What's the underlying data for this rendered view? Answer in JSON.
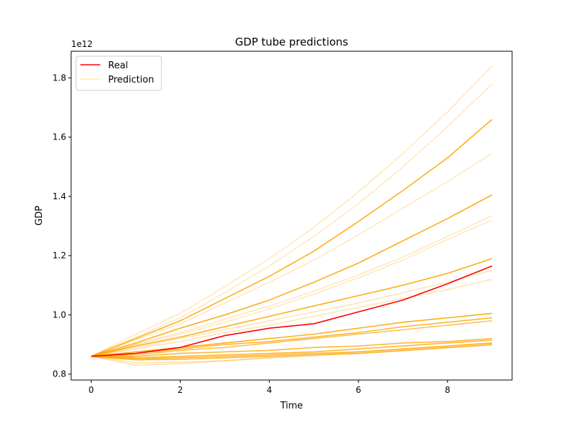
{
  "chart_data": {
    "type": "line",
    "title": "GDP tube predictions",
    "xlabel": "Time",
    "ylabel": "GDP",
    "y_offset_label": "1e12",
    "xlim": [
      -0.45,
      9.45
    ],
    "ylim": [
      0.78,
      1.89
    ],
    "x_ticks": [
      0,
      2,
      4,
      6,
      8
    ],
    "y_ticks": [
      0.8,
      1.0,
      1.2,
      1.4,
      1.6,
      1.8
    ],
    "y_tick_labels": [
      "0.8",
      "1.0",
      "1.2",
      "1.4",
      "1.6",
      "1.8"
    ],
    "grid": false,
    "legend": {
      "position": "top-left",
      "entries": [
        {
          "label": "Real",
          "color": "#ff0000"
        },
        {
          "label": "Prediction",
          "color": "#ffa500"
        }
      ]
    },
    "x": [
      0,
      1,
      2,
      3,
      4,
      5,
      6,
      7,
      8,
      9
    ],
    "real": {
      "name": "Real",
      "color": "#ff0000",
      "values": [
        0.86,
        0.87,
        0.89,
        0.93,
        0.955,
        0.97,
        1.01,
        1.05,
        1.105,
        1.165
      ]
    },
    "predictions": {
      "name": "Prediction",
      "color": "#ffa500",
      "series": [
        {
          "values": [
            0.86,
            0.935,
            1.005,
            1.095,
            1.19,
            1.295,
            1.415,
            1.545,
            1.685,
            1.84
          ],
          "opacity": 0.25
        },
        {
          "values": [
            0.86,
            0.925,
            0.99,
            1.075,
            1.165,
            1.265,
            1.375,
            1.5,
            1.635,
            1.78
          ],
          "opacity": 0.25
        },
        {
          "values": [
            0.86,
            0.92,
            0.98,
            1.055,
            1.13,
            1.215,
            1.315,
            1.42,
            1.53,
            1.66
          ],
          "opacity": 0.9
        },
        {
          "values": [
            0.86,
            0.915,
            0.97,
            1.04,
            1.11,
            1.185,
            1.27,
            1.36,
            1.45,
            1.545
          ],
          "opacity": 0.25
        },
        {
          "values": [
            0.86,
            0.905,
            0.955,
            1.0,
            1.05,
            1.11,
            1.175,
            1.25,
            1.325,
            1.405
          ],
          "opacity": 0.9
        },
        {
          "values": [
            0.86,
            0.9,
            0.94,
            0.985,
            1.03,
            1.08,
            1.135,
            1.195,
            1.265,
            1.335
          ],
          "opacity": 0.25
        },
        {
          "values": [
            0.86,
            0.9,
            0.935,
            0.975,
            1.02,
            1.07,
            1.125,
            1.185,
            1.255,
            1.32
          ],
          "opacity": 0.25
        },
        {
          "values": [
            0.86,
            0.895,
            0.925,
            0.96,
            0.995,
            1.03,
            1.065,
            1.1,
            1.14,
            1.19
          ],
          "opacity": 0.9
        },
        {
          "values": [
            0.86,
            0.89,
            0.92,
            0.95,
            0.98,
            1.01,
            1.04,
            1.075,
            1.11,
            1.15
          ],
          "opacity": 0.3
        },
        {
          "values": [
            0.86,
            0.885,
            0.91,
            0.94,
            0.965,
            0.995,
            1.025,
            1.055,
            1.085,
            1.12
          ],
          "opacity": 0.3
        },
        {
          "values": [
            0.86,
            0.875,
            0.89,
            0.905,
            0.92,
            0.935,
            0.955,
            0.975,
            0.99,
            1.005
          ],
          "opacity": 0.9
        },
        {
          "values": [
            0.86,
            0.87,
            0.885,
            0.9,
            0.91,
            0.925,
            0.94,
            0.96,
            0.975,
            0.99
          ],
          "opacity": 0.8
        },
        {
          "values": [
            0.86,
            0.865,
            0.88,
            0.89,
            0.905,
            0.92,
            0.935,
            0.95,
            0.965,
            0.98
          ],
          "opacity": 0.7
        },
        {
          "values": [
            0.86,
            0.86,
            0.87,
            0.875,
            0.88,
            0.89,
            0.895,
            0.905,
            0.91,
            0.92
          ],
          "opacity": 0.8
        },
        {
          "values": [
            0.86,
            0.855,
            0.86,
            0.865,
            0.87,
            0.875,
            0.885,
            0.895,
            0.905,
            0.915
          ],
          "opacity": 0.8
        },
        {
          "values": [
            0.86,
            0.852,
            0.855,
            0.86,
            0.865,
            0.87,
            0.875,
            0.885,
            0.895,
            0.905
          ],
          "opacity": 0.8
        },
        {
          "values": [
            0.86,
            0.848,
            0.85,
            0.855,
            0.86,
            0.865,
            0.87,
            0.88,
            0.89,
            0.9
          ],
          "opacity": 0.8
        },
        {
          "values": [
            0.86,
            0.838,
            0.84,
            0.845,
            0.855,
            0.862,
            0.87,
            0.878,
            0.888,
            0.898
          ],
          "opacity": 0.35
        },
        {
          "values": [
            0.86,
            0.83,
            0.835,
            0.845,
            0.855,
            0.865,
            0.875,
            0.885,
            0.895,
            0.905
          ],
          "opacity": 0.3
        }
      ]
    }
  }
}
